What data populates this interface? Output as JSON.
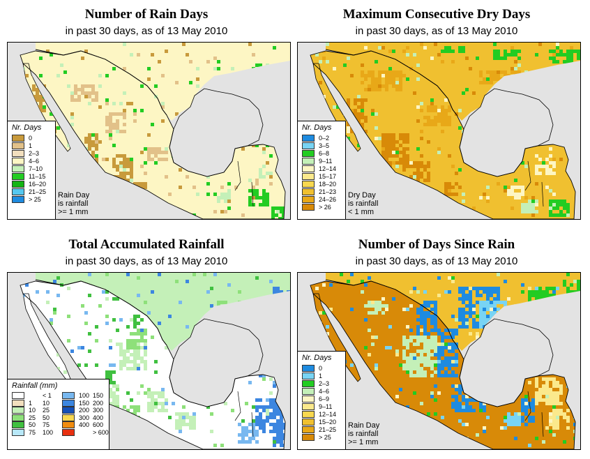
{
  "panels": [
    {
      "id": "rain-days",
      "title": "Number of Rain Days",
      "subtitle": "in past 30 days, as of  13 May 2010",
      "legend_title": "Nr. Days",
      "legend": [
        {
          "label": "0",
          "color": "#c89a3c"
        },
        {
          "label": "1",
          "color": "#e2c189"
        },
        {
          "label": "2–3",
          "color": "#f2dfbe"
        },
        {
          "label": "4–6",
          "color": "#fdf6c4"
        },
        {
          "label": "7–10",
          "color": "#c4f0b8"
        },
        {
          "label": "11–15",
          "color": "#22cc22"
        },
        {
          "label": "16–20",
          "color": "#14b414"
        },
        {
          "label": "21–25",
          "color": "#55c8f0"
        },
        {
          "label": "> 25",
          "color": "#1e8be0"
        }
      ],
      "note": [
        "Rain Day",
        "is rainfall",
        ">= 1 mm"
      ]
    },
    {
      "id": "max-dry-days",
      "title": "Maximum Consecutive Dry Days",
      "subtitle": "in past 30 days, as of  13 May 2010",
      "legend_title": "Nr. Days",
      "legend": [
        {
          "label": "0–2",
          "color": "#1e8be0"
        },
        {
          "label": "3–5",
          "color": "#78d4f4"
        },
        {
          "label": "6–8",
          "color": "#22cc22"
        },
        {
          "label": "9–11",
          "color": "#c4f0b8"
        },
        {
          "label": "12–14",
          "color": "#fdf6c4"
        },
        {
          "label": "15–17",
          "color": "#fbe98c"
        },
        {
          "label": "18–20",
          "color": "#f8d850"
        },
        {
          "label": "21–23",
          "color": "#f0c030"
        },
        {
          "label": "24–26",
          "color": "#e8a818"
        },
        {
          "label": "> 26",
          "color": "#d88a08"
        }
      ],
      "note": [
        "Dry Day",
        "is rainfall",
        "< 1 mm"
      ]
    },
    {
      "id": "total-rainfall",
      "title": "Total Accumulated Rainfall",
      "subtitle": "in past 30 days, as of  13 May 2010",
      "legend_title": "Rainfall (mm)",
      "legend_left": [
        {
          "lo": "",
          "hi": "< 1",
          "color": "#ffffff"
        },
        {
          "lo": "1",
          "hi": "10",
          "color": "#f2dfbe"
        },
        {
          "lo": "10",
          "hi": "25",
          "color": "#c4f0b8"
        },
        {
          "lo": "25",
          "hi": "50",
          "color": "#8ee07a"
        },
        {
          "lo": "50",
          "hi": "75",
          "color": "#40c040"
        },
        {
          "lo": "75",
          "hi": "100",
          "color": "#b8e8f8"
        }
      ],
      "legend_right": [
        {
          "lo": "100",
          "hi": "150",
          "color": "#78b8f0"
        },
        {
          "lo": "150",
          "hi": "200",
          "color": "#3c86e0"
        },
        {
          "lo": "200",
          "hi": "300",
          "color": "#1450b8"
        },
        {
          "lo": "300",
          "hi": "400",
          "color": "#f8d850"
        },
        {
          "lo": "400",
          "hi": "600",
          "color": "#f08c10"
        },
        {
          "lo": "",
          "hi": "> 600",
          "color": "#e83010"
        }
      ]
    },
    {
      "id": "days-since-rain",
      "title": "Number of Days Since Rain",
      "subtitle": "in past 30 days, as of  13 May 2010",
      "legend_title": "Nr. Days",
      "legend": [
        {
          "label": "0",
          "color": "#1e8be0"
        },
        {
          "label": "1",
          "color": "#78d4f4"
        },
        {
          "label": "2–3",
          "color": "#22cc22"
        },
        {
          "label": "4–6",
          "color": "#c4f0b8"
        },
        {
          "label": "6–9",
          "color": "#fdf6c4"
        },
        {
          "label": "9–11",
          "color": "#fbe98c"
        },
        {
          "label": "12–14",
          "color": "#f8d850"
        },
        {
          "label": "15–20",
          "color": "#f0c030"
        },
        {
          "label": "21–25",
          "color": "#e8a818"
        },
        {
          "label": "> 25",
          "color": "#d88a08"
        }
      ],
      "note": [
        "Rain Day",
        "is rainfall",
        ">= 1 mm"
      ]
    }
  ]
}
